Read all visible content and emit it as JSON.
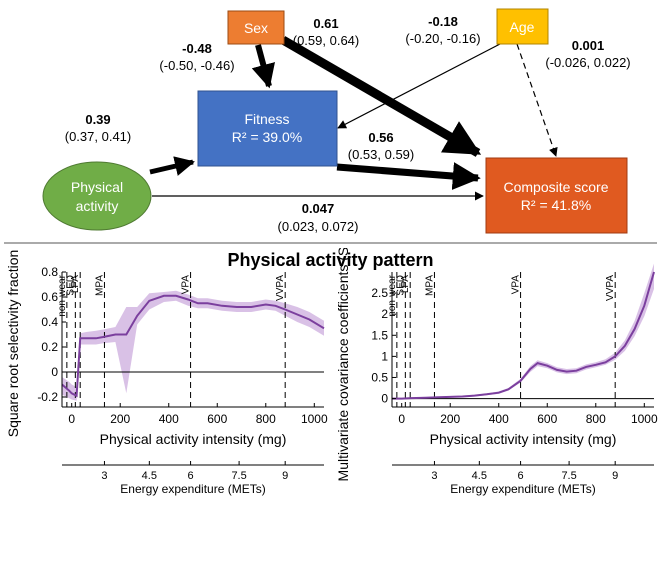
{
  "diagram": {
    "nodes": {
      "sex": {
        "label": "Sex",
        "color": "#ED7D31"
      },
      "age": {
        "label": "Age",
        "color": "#FFC000"
      },
      "fitness": {
        "label": "Fitness",
        "r2": "R² = 39.0%",
        "color": "#4472C4"
      },
      "physical_activity": {
        "line1": "Physical",
        "line2": "activity",
        "color": "#70AD47"
      },
      "composite": {
        "label": "Composite score",
        "r2": "R² = 41.8%",
        "color": "#E05A20"
      }
    },
    "paths": {
      "pa_fitness": {
        "coef": "0.39",
        "ci": "(0.37, 0.41)"
      },
      "sex_fitness": {
        "coef": "-0.48",
        "ci": "(-0.50, -0.46)"
      },
      "sex_composite": {
        "coef": "0.61",
        "ci": "(0.59, 0.64)"
      },
      "age_fitness": {
        "coef": "-0.18",
        "ci": "(-0.20, -0.16)"
      },
      "age_composite": {
        "coef": "0.001",
        "ci": "(-0.026, 0.022)"
      },
      "fitness_composite": {
        "coef": "0.56",
        "ci": "(0.53, 0.59)"
      },
      "pa_composite": {
        "coef": "0.047",
        "ci": "(0.023, 0.072)"
      }
    }
  },
  "section_title": "Physical activity pattern",
  "chart_data": [
    {
      "type": "line",
      "ylabel": "Square root selectivity fraction",
      "xlabel": "Physical activity intensity (mg)",
      "xlim": [
        -40,
        1040
      ],
      "ylim": [
        -0.28,
        0.8
      ],
      "x_ticks": [
        0,
        200,
        400,
        600,
        800,
        1000
      ],
      "y_ticks": [
        -0.2,
        0,
        0.2,
        0.4,
        0.6,
        0.8
      ],
      "y_tick_labels": [
        "-0.2",
        "0",
        "0.2",
        "0.4",
        "0.6",
        "0.8"
      ],
      "zero_line": true,
      "series_color": "#7B3F9E",
      "band_color": "#C9A6DC",
      "x": [
        -40,
        -10,
        0,
        20,
        35,
        60,
        100,
        130,
        180,
        225,
        270,
        320,
        380,
        430,
        480,
        520,
        560,
        620,
        680,
        740,
        800,
        840,
        880,
        930,
        980,
        1040
      ],
      "y": [
        -0.1,
        -0.15,
        -0.17,
        -0.19,
        0.27,
        0.27,
        0.27,
        0.28,
        0.3,
        0.3,
        0.45,
        0.57,
        0.61,
        0.61,
        0.58,
        0.55,
        0.55,
        0.53,
        0.52,
        0.52,
        0.54,
        0.53,
        0.5,
        0.46,
        0.42,
        0.35
      ],
      "lower": [
        -0.18,
        -0.21,
        -0.22,
        -0.23,
        0.22,
        0.22,
        0.22,
        0.23,
        0.24,
        -0.17,
        0.38,
        0.5,
        0.56,
        0.57,
        0.53,
        0.51,
        0.51,
        0.49,
        0.48,
        0.48,
        0.5,
        0.49,
        0.45,
        0.4,
        0.36,
        0.29
      ],
      "upper": [
        -0.04,
        -0.08,
        -0.1,
        -0.12,
        0.31,
        0.32,
        0.33,
        0.34,
        0.36,
        0.52,
        0.52,
        0.63,
        0.64,
        0.65,
        0.62,
        0.59,
        0.59,
        0.57,
        0.56,
        0.56,
        0.58,
        0.57,
        0.55,
        0.52,
        0.48,
        0.41
      ],
      "cut_lines": [
        {
          "x": -20,
          "label": "non-wear"
        },
        {
          "x": 15,
          "label": "SED"
        },
        {
          "x": 35,
          "label": "LPA"
        },
        {
          "x": 135,
          "label": "MPA"
        },
        {
          "x": 490,
          "label": "VPA"
        },
        {
          "x": 880,
          "label": "VVPA"
        }
      ],
      "met_label": "Energy expenditure (METs)",
      "met_ticks": [
        {
          "x": 135,
          "label": "3"
        },
        {
          "x": 320,
          "label": "4.5"
        },
        {
          "x": 490,
          "label": "6"
        },
        {
          "x": 690,
          "label": "7.5"
        },
        {
          "x": 880,
          "label": "9"
        }
      ]
    },
    {
      "type": "line",
      "ylabel": "Multivariate covariance coefficients (SD/min)",
      "xlabel": "Physical activity intensity (mg)",
      "xlim": [
        -40,
        1040
      ],
      "ylim": [
        -0.2,
        3.0
      ],
      "x_ticks": [
        0,
        200,
        400,
        600,
        800,
        1000
      ],
      "y_ticks": [
        0,
        0.5,
        1,
        1.5,
        2,
        2.5
      ],
      "y_tick_labels": [
        "0",
        "0.5",
        "1",
        "1.5",
        "2",
        "2.5"
      ],
      "zero_line": true,
      "series_color": "#7B3F9E",
      "band_color": "#C9A6DC",
      "x": [
        -40,
        0,
        40,
        100,
        150,
        200,
        250,
        300,
        350,
        400,
        440,
        490,
        530,
        560,
        600,
        640,
        680,
        720,
        760,
        800,
        840,
        880,
        920,
        960,
        1000,
        1040
      ],
      "y": [
        0,
        0,
        0.01,
        0.02,
        0.03,
        0.04,
        0.05,
        0.07,
        0.1,
        0.14,
        0.22,
        0.42,
        0.7,
        0.84,
        0.78,
        0.68,
        0.64,
        0.66,
        0.75,
        0.8,
        0.86,
        1.0,
        1.25,
        1.65,
        2.2,
        3.0
      ],
      "lower": [
        -0.02,
        -0.02,
        -0.01,
        0,
        0.01,
        0.02,
        0.03,
        0.05,
        0.08,
        0.11,
        0.19,
        0.38,
        0.63,
        0.77,
        0.72,
        0.62,
        0.58,
        0.6,
        0.69,
        0.74,
        0.8,
        0.92,
        1.13,
        1.48,
        1.95,
        2.6
      ],
      "upper": [
        0.02,
        0.02,
        0.03,
        0.04,
        0.05,
        0.06,
        0.07,
        0.09,
        0.12,
        0.17,
        0.25,
        0.47,
        0.77,
        0.91,
        0.84,
        0.74,
        0.7,
        0.72,
        0.81,
        0.86,
        0.93,
        1.09,
        1.38,
        1.84,
        2.5,
        3.2
      ],
      "cut_lines": [
        {
          "x": -20,
          "label": "non-wear"
        },
        {
          "x": 15,
          "label": "SED"
        },
        {
          "x": 35,
          "label": "LPA"
        },
        {
          "x": 135,
          "label": "MPA"
        },
        {
          "x": 490,
          "label": "VPA"
        },
        {
          "x": 880,
          "label": "VVPA"
        }
      ],
      "met_label": "Energy expenditure (METs)",
      "met_ticks": [
        {
          "x": 135,
          "label": "3"
        },
        {
          "x": 320,
          "label": "4.5"
        },
        {
          "x": 490,
          "label": "6"
        },
        {
          "x": 690,
          "label": "7.5"
        },
        {
          "x": 880,
          "label": "9"
        }
      ]
    }
  ]
}
